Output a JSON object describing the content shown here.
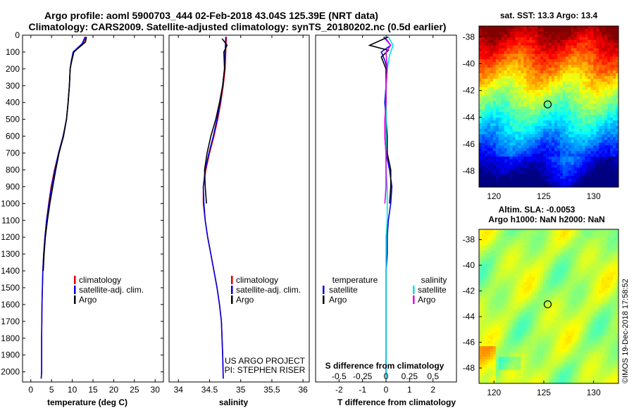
{
  "header": {
    "line1": "Argo profile: aoml 5900703_444 02-Feb-2018 43.04S 125.39E (NRT data)",
    "line2": "Climatology: CARS2009. Satellite-adjusted climatology: synTS_20180202.nc (0.5d earlier)"
  },
  "colors": {
    "climatology": "#e00000",
    "satellite": "#0000e0",
    "argo": "#000000",
    "sat_salinity": "#00e0e0",
    "argo_salinity": "#e000e0"
  },
  "chart_data": [
    {
      "type": "line",
      "xlabel": "temperature (deg C)",
      "ylabel": "",
      "xlim": [
        -2,
        32
      ],
      "ylim": [
        2060,
        0
      ],
      "xticks": [
        "0",
        "5",
        "10",
        "15",
        "20",
        "25",
        "30"
      ],
      "yticks": [
        "0",
        "100",
        "200",
        "300",
        "400",
        "500",
        "600",
        "700",
        "800",
        "900",
        "1000",
        "1100",
        "1200",
        "1300",
        "1400",
        "1500",
        "1600",
        "1700",
        "1800",
        "1900",
        "2000"
      ],
      "legend_position": "lower-right",
      "series": [
        {
          "name": "climatology",
          "color": "#e00000",
          "x": [
            13.3,
            12.6,
            10.3,
            9.8,
            9.5,
            9.3,
            9.0,
            8.6,
            7.8,
            6.7,
            5.7,
            4.9,
            4.3,
            3.8,
            3.4,
            3.1,
            2.9,
            2.8,
            2.7,
            2.6,
            2.6,
            2.5
          ],
          "y": [
            10,
            50,
            100,
            150,
            200,
            300,
            400,
            500,
            600,
            700,
            800,
            900,
            1000,
            1100,
            1200,
            1300,
            1400,
            1500,
            1600,
            1800,
            2000,
            2040
          ]
        },
        {
          "name": "satellite-adj. clim.",
          "color": "#0000e0",
          "x": [
            13.1,
            12.4,
            10.2,
            9.8,
            9.5,
            9.3,
            9.0,
            8.6,
            7.8,
            6.7,
            5.8,
            5.0,
            4.4,
            3.8,
            3.4,
            3.1,
            2.9,
            2.8,
            2.7,
            2.6,
            2.6,
            2.5
          ],
          "y": [
            10,
            50,
            100,
            150,
            200,
            300,
            400,
            500,
            600,
            700,
            800,
            900,
            1000,
            1100,
            1200,
            1300,
            1400,
            1500,
            1600,
            1800,
            2000,
            2040
          ]
        },
        {
          "name": "Argo",
          "color": "#000000",
          "x": [
            13.4,
            13.2,
            10.4,
            9.9,
            9.5,
            9.3,
            9.0,
            8.6,
            7.9,
            6.8,
            6.0,
            5.3,
            4.6,
            4.0,
            3.5,
            3.2,
            3.0
          ],
          "y": [
            10,
            40,
            100,
            150,
            200,
            300,
            400,
            500,
            600,
            700,
            800,
            900,
            1000,
            1100,
            1200,
            1300,
            1400
          ]
        }
      ]
    },
    {
      "type": "line",
      "xlabel": "salinity",
      "ylabel": "",
      "xlim": [
        33.85,
        36.1
      ],
      "ylim": [
        2060,
        0
      ],
      "xticks": [
        "34",
        "34.5",
        "35",
        "35.5",
        "36"
      ],
      "legend_position": "lower-right",
      "annotations": [
        "US ARGO PROJECT",
        "PI: STEPHEN RISER"
      ],
      "series": [
        {
          "name": "climatology",
          "color": "#e00000",
          "x": [
            34.77,
            34.76,
            34.75,
            34.72,
            34.68,
            34.63,
            34.57,
            34.5,
            34.44,
            34.4,
            34.4,
            34.43,
            34.47,
            34.52,
            34.57,
            34.62,
            34.66,
            34.69,
            34.71,
            34.72
          ],
          "y": [
            10,
            100,
            200,
            300,
            400,
            500,
            600,
            700,
            800,
            900,
            1000,
            1100,
            1200,
            1300,
            1400,
            1500,
            1600,
            1700,
            1900,
            2040
          ]
        },
        {
          "name": "satellite-adj. clim.",
          "color": "#0000e0",
          "x": [
            34.76,
            34.75,
            34.74,
            34.71,
            34.67,
            34.62,
            34.56,
            34.49,
            34.43,
            34.4,
            34.41,
            34.43,
            34.47,
            34.52,
            34.57,
            34.62,
            34.66,
            34.69,
            34.71,
            34.72
          ],
          "y": [
            10,
            100,
            200,
            300,
            400,
            500,
            600,
            700,
            800,
            900,
            1000,
            1100,
            1200,
            1300,
            1400,
            1500,
            1600,
            1700,
            1900,
            2040
          ]
        },
        {
          "name": "Argo",
          "color": "#000000",
          "x": [
            34.7,
            34.78,
            34.73,
            34.74,
            34.71,
            34.66,
            34.6,
            34.52,
            34.46,
            34.42,
            34.43,
            34.45
          ],
          "y": [
            20,
            60,
            100,
            200,
            300,
            400,
            500,
            600,
            700,
            800,
            900,
            1000
          ]
        }
      ]
    },
    {
      "type": "line",
      "xlabel": "T difference from climatology",
      "ylabel": "",
      "xlim": [
        -3,
        3
      ],
      "ylim": [
        2060,
        0
      ],
      "xticks": [
        "-2",
        "-1",
        "0",
        "1",
        "2"
      ],
      "secondary_label": "S difference from climatology",
      "secondary_ticks": [
        "-0.5",
        "-0.25",
        "0",
        "0.25",
        "0.5"
      ],
      "legend_position": "lower-center",
      "legend_groups": [
        "temperature",
        "salinity"
      ],
      "series": [
        {
          "name": "satellite",
          "group": "temperature",
          "color": "#0000e0",
          "x": [
            -0.1,
            0.2,
            -0.2,
            -0.05,
            0.05,
            0.0,
            -0.05,
            0.0,
            -0.05,
            0.0,
            0.15,
            0.25,
            0.2,
            0.1,
            0.05,
            0.05,
            0.0,
            0.0,
            0.0,
            0.0,
            0.0,
            0.0
          ],
          "y": [
            10,
            60,
            100,
            150,
            200,
            300,
            400,
            500,
            600,
            700,
            800,
            900,
            1000,
            1100,
            1200,
            1300,
            1400,
            1500,
            1600,
            1800,
            2000,
            2040
          ]
        },
        {
          "name": "Argo",
          "group": "temperature",
          "color": "#000000",
          "x": [
            0.1,
            -0.7,
            0.1,
            -0.2,
            0.0,
            0.0,
            0.0,
            0.0,
            0.05,
            0.05,
            0.2,
            0.2,
            0.15
          ],
          "y": [
            10,
            60,
            90,
            130,
            200,
            300,
            400,
            500,
            600,
            700,
            800,
            900,
            1000
          ]
        },
        {
          "name": "satellite",
          "group": "salinity",
          "color": "#00e0e0",
          "x": [
            0.1,
            0.3,
            0.15,
            0.05,
            0.0,
            0.0,
            0.0,
            0.0,
            0.0,
            0.0,
            0.05,
            0.05,
            0.05,
            0.0,
            0.0,
            0.0,
            0.0,
            0.0,
            0.0,
            0.0
          ],
          "y": [
            10,
            60,
            120,
            200,
            300,
            400,
            500,
            600,
            700,
            800,
            900,
            1000,
            1100,
            1200,
            1300,
            1400,
            1500,
            1600,
            1800,
            2040
          ]
        },
        {
          "name": "Argo",
          "group": "salinity",
          "color": "#e000e0",
          "x": [
            0.0,
            0.2,
            0.0,
            0.05,
            0.0,
            0.0,
            -0.05,
            -0.05,
            0.0,
            0.0,
            0.0,
            -0.05
          ],
          "y": [
            20,
            60,
            100,
            200,
            300,
            400,
            500,
            600,
            700,
            800,
            900,
            1000
          ]
        }
      ]
    },
    {
      "type": "heatmap",
      "title": "sat. SST: 13.3 Argo: 13.4",
      "xticks": [
        "120",
        "125",
        "130"
      ],
      "yticks": [
        "-38",
        "-40",
        "-42",
        "-44",
        "-46",
        "-48"
      ],
      "xlim": [
        118.5,
        132.5
      ],
      "ylim": [
        -49.2,
        -37.2
      ],
      "marker": {
        "lon": 125.39,
        "lat": -43.04
      }
    },
    {
      "type": "heatmap",
      "title": "Altim. SLA: -0.0053",
      "subtitle": "Argo h1000: NaN h2000: NaN",
      "xticks": [
        "120",
        "125",
        "130"
      ],
      "yticks": [
        "-38",
        "-40",
        "-42",
        "-44",
        "-46",
        "-48"
      ],
      "xlim": [
        118.5,
        132.5
      ],
      "ylim": [
        -49.2,
        -37.2
      ],
      "marker": {
        "lon": 125.39,
        "lat": -43.04
      }
    }
  ],
  "footer": {
    "credit": "©IMOS 19-Dec-2018 17:58:52"
  }
}
